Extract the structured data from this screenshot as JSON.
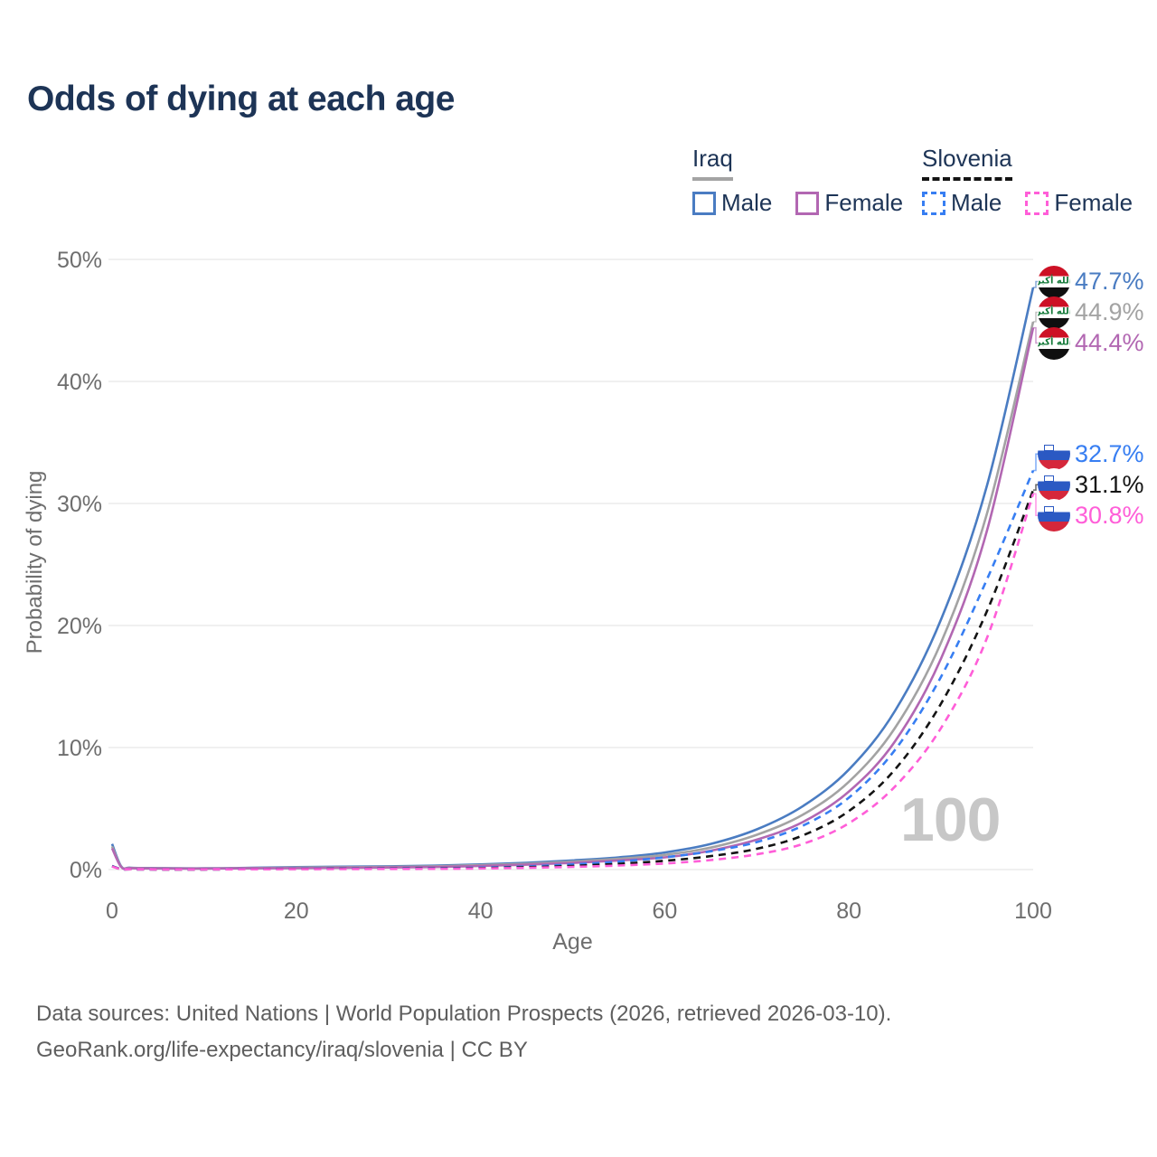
{
  "title": "Odds of dying at each age",
  "legend": {
    "iraq": {
      "label": "Iraq",
      "male": "Male",
      "female": "Female"
    },
    "slovenia": {
      "label": "Slovenia",
      "male": "Male",
      "female": "Female"
    }
  },
  "watermark": "100",
  "footer": {
    "line1": "Data sources: United Nations | World Population Prospects (2026, retrieved 2026-03-10).",
    "line2": "GeoRank.org/life-expectancy/iraq/slovenia | CC BY"
  },
  "colors": {
    "title_text": "#1d3456",
    "axis_text": "#6e6e6e",
    "gridline": "#e8e8e8",
    "watermark": "#c7c7c7",
    "iraq_male": "#4a7cc2",
    "iraq_both": "#a3a3a3",
    "iraq_female": "#b267b2",
    "slovenia_male": "#377ef2",
    "slovenia_both": "#141414",
    "slovenia_female": "#ff5ed8"
  },
  "iraq_flag_text": "الله أكبر",
  "chart_data": {
    "type": "line",
    "title": "Odds of dying at each age",
    "xlabel": "Age",
    "ylabel": "Probability of dying",
    "xlim": [
      0,
      100
    ],
    "ylim": [
      0,
      50
    ],
    "x_ticks": [
      0,
      20,
      40,
      60,
      80,
      100
    ],
    "y_ticks": [
      0,
      10,
      20,
      30,
      40,
      50
    ],
    "y_tick_labels": [
      "0%",
      "10%",
      "20%",
      "30%",
      "40%",
      "50%"
    ],
    "grid": true,
    "legend_position": "top-right",
    "series": [
      {
        "name": "Iraq Male",
        "country": "iraq",
        "sex": "male",
        "color": "#4a7cc2",
        "dashed": false,
        "flag": "iraq-flag-icon",
        "end_label": "47.7%",
        "points": [
          [
            0,
            2.1
          ],
          [
            1,
            0.25
          ],
          [
            2,
            0.15
          ],
          [
            5,
            0.12
          ],
          [
            10,
            0.1
          ],
          [
            15,
            0.14
          ],
          [
            20,
            0.2
          ],
          [
            25,
            0.24
          ],
          [
            30,
            0.27
          ],
          [
            35,
            0.32
          ],
          [
            40,
            0.42
          ],
          [
            45,
            0.55
          ],
          [
            50,
            0.75
          ],
          [
            55,
            1.0
          ],
          [
            60,
            1.4
          ],
          [
            65,
            2.1
          ],
          [
            70,
            3.3
          ],
          [
            75,
            5.2
          ],
          [
            80,
            8.2
          ],
          [
            85,
            13.0
          ],
          [
            90,
            20.5
          ],
          [
            95,
            31.5
          ],
          [
            100,
            47.7
          ]
        ]
      },
      {
        "name": "Iraq Both sexes",
        "country": "iraq",
        "sex": "both",
        "color": "#a3a3a3",
        "dashed": false,
        "flag": "iraq-flag-icon",
        "end_label": "44.9%",
        "points": [
          [
            0,
            1.9
          ],
          [
            1,
            0.22
          ],
          [
            2,
            0.13
          ],
          [
            5,
            0.1
          ],
          [
            10,
            0.09
          ],
          [
            15,
            0.12
          ],
          [
            20,
            0.16
          ],
          [
            25,
            0.19
          ],
          [
            30,
            0.22
          ],
          [
            35,
            0.27
          ],
          [
            40,
            0.36
          ],
          [
            45,
            0.47
          ],
          [
            50,
            0.65
          ],
          [
            55,
            0.88
          ],
          [
            60,
            1.2
          ],
          [
            65,
            1.8
          ],
          [
            70,
            2.85
          ],
          [
            75,
            4.5
          ],
          [
            80,
            7.2
          ],
          [
            85,
            11.6
          ],
          [
            90,
            18.6
          ],
          [
            95,
            29.2
          ],
          [
            100,
            44.9
          ]
        ]
      },
      {
        "name": "Iraq Female",
        "country": "iraq",
        "sex": "female",
        "color": "#b267b2",
        "dashed": false,
        "flag": "iraq-flag-icon",
        "end_label": "44.4%",
        "points": [
          [
            0,
            1.75
          ],
          [
            1,
            0.2
          ],
          [
            2,
            0.12
          ],
          [
            5,
            0.09
          ],
          [
            10,
            0.08
          ],
          [
            15,
            0.1
          ],
          [
            20,
            0.12
          ],
          [
            25,
            0.14
          ],
          [
            30,
            0.17
          ],
          [
            35,
            0.21
          ],
          [
            40,
            0.3
          ],
          [
            45,
            0.4
          ],
          [
            50,
            0.55
          ],
          [
            55,
            0.75
          ],
          [
            60,
            1.0
          ],
          [
            65,
            1.55
          ],
          [
            70,
            2.45
          ],
          [
            75,
            3.9
          ],
          [
            80,
            6.4
          ],
          [
            85,
            10.5
          ],
          [
            90,
            17.3
          ],
          [
            95,
            27.8
          ],
          [
            100,
            44.4
          ]
        ]
      },
      {
        "name": "Slovenia Male",
        "country": "slovenia",
        "sex": "male",
        "color": "#377ef2",
        "dashed": true,
        "flag": "slovenia-flag-icon",
        "end_label": "32.7%",
        "points": [
          [
            0,
            0.3
          ],
          [
            1,
            0.03
          ],
          [
            2,
            0.02
          ],
          [
            5,
            0.01
          ],
          [
            10,
            0.01
          ],
          [
            15,
            0.04
          ],
          [
            20,
            0.07
          ],
          [
            25,
            0.08
          ],
          [
            30,
            0.09
          ],
          [
            35,
            0.11
          ],
          [
            40,
            0.16
          ],
          [
            45,
            0.25
          ],
          [
            50,
            0.42
          ],
          [
            55,
            0.65
          ],
          [
            60,
            1.0
          ],
          [
            65,
            1.5
          ],
          [
            70,
            2.25
          ],
          [
            75,
            3.6
          ],
          [
            80,
            5.9
          ],
          [
            85,
            9.8
          ],
          [
            90,
            15.8
          ],
          [
            95,
            23.8
          ],
          [
            100,
            32.7
          ]
        ]
      },
      {
        "name": "Slovenia Both sexes",
        "country": "slovenia",
        "sex": "both",
        "color": "#141414",
        "dashed": true,
        "flag": "slovenia-flag-icon",
        "end_label": "31.1%",
        "points": [
          [
            0,
            0.27
          ],
          [
            1,
            0.03
          ],
          [
            2,
            0.02
          ],
          [
            5,
            0.01
          ],
          [
            10,
            0.01
          ],
          [
            15,
            0.03
          ],
          [
            20,
            0.05
          ],
          [
            25,
            0.06
          ],
          [
            30,
            0.07
          ],
          [
            35,
            0.08
          ],
          [
            40,
            0.12
          ],
          [
            45,
            0.19
          ],
          [
            50,
            0.3
          ],
          [
            55,
            0.47
          ],
          [
            60,
            0.72
          ],
          [
            65,
            1.1
          ],
          [
            70,
            1.7
          ],
          [
            75,
            2.8
          ],
          [
            80,
            4.8
          ],
          [
            85,
            8.2
          ],
          [
            90,
            13.6
          ],
          [
            95,
            21.2
          ],
          [
            100,
            31.1
          ]
        ]
      },
      {
        "name": "Slovenia Female",
        "country": "slovenia",
        "sex": "female",
        "color": "#ff5ed8",
        "dashed": true,
        "flag": "slovenia-flag-icon",
        "end_label": "30.8%",
        "points": [
          [
            0,
            0.25
          ],
          [
            1,
            0.02
          ],
          [
            2,
            0.02
          ],
          [
            5,
            0.01
          ],
          [
            10,
            0.01
          ],
          [
            15,
            0.02
          ],
          [
            20,
            0.03
          ],
          [
            25,
            0.04
          ],
          [
            30,
            0.05
          ],
          [
            35,
            0.06
          ],
          [
            40,
            0.09
          ],
          [
            45,
            0.14
          ],
          [
            50,
            0.22
          ],
          [
            55,
            0.33
          ],
          [
            60,
            0.5
          ],
          [
            65,
            0.78
          ],
          [
            70,
            1.25
          ],
          [
            75,
            2.1
          ],
          [
            80,
            3.8
          ],
          [
            85,
            6.8
          ],
          [
            90,
            11.6
          ],
          [
            95,
            19.0
          ],
          [
            100,
            30.8
          ]
        ]
      }
    ]
  }
}
